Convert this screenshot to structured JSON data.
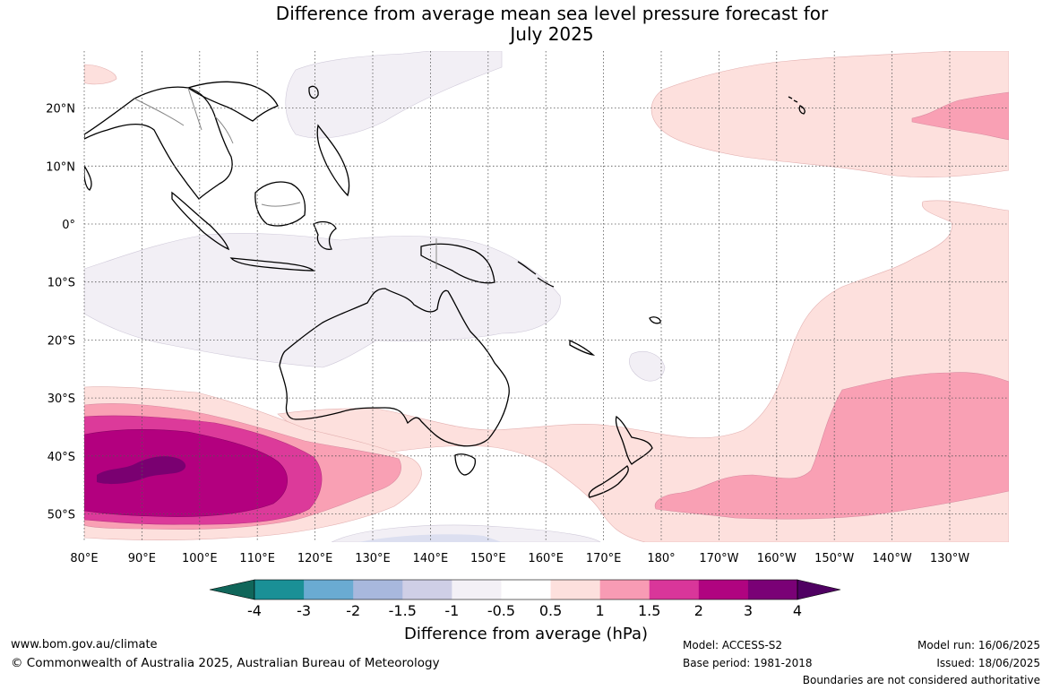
{
  "title": {
    "line1": "Difference from average mean sea level pressure forecast for",
    "line2": "July 2025"
  },
  "map": {
    "lat_labels": [
      "20°N",
      "10°N",
      "0°",
      "10°S",
      "20°S",
      "30°S",
      "40°S",
      "50°S"
    ],
    "lon_labels": [
      "80°E",
      "90°E",
      "100°E",
      "110°E",
      "120°E",
      "130°E",
      "140°E",
      "150°E",
      "160°E",
      "170°E",
      "180°",
      "170°W",
      "160°W",
      "150°W",
      "140°W",
      "130°W"
    ],
    "colors": {
      "ocean": "#ffffff",
      "light_purple": "#f2eff5",
      "light_blue": "#dcdff0",
      "light_pink": "#fce0dd",
      "mid_pink": "#f9a0b4",
      "pink_magenta": "#dc3a9a",
      "magenta": "#b3007f",
      "dark_magenta": "#7a0071",
      "coast": "#000000",
      "border": "#888888"
    }
  },
  "colorbar": {
    "ticks": [
      "-4",
      "-3",
      "-2",
      "-1.5",
      "-1",
      "-0.5",
      "0.5",
      "1",
      "1.5",
      "2",
      "3",
      "4"
    ],
    "colors": [
      "#14705f",
      "#1a9096",
      "#6aabd2",
      "#a8b8dd",
      "#cfcfe6",
      "#f3f0f6",
      "#ffffff",
      "#fde0dd",
      "#f89bb4",
      "#d9369a",
      "#b00480",
      "#7a0176"
    ],
    "end_low": "#10665a",
    "end_high": "#4f0162",
    "label": "Difference from average (hPa)"
  },
  "footer": {
    "url": "www.bom.gov.au/climate",
    "copyright": "© Commonwealth of Australia 2025, Australian Bureau of Meteorology",
    "model": "Model: ACCESS-S2",
    "base_period": "Base period: 1981-2018",
    "model_run": "Model run: 16/06/2025",
    "issued": "Issued: 18/06/2025",
    "disclaimer": "Boundaries are not considered authoritative"
  }
}
